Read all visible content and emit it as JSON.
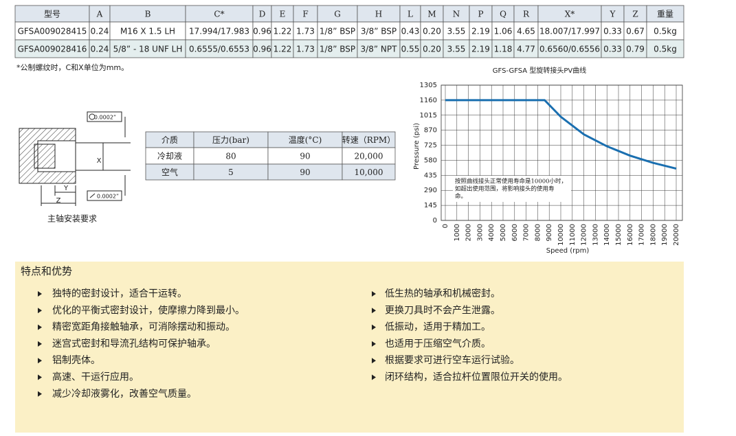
{
  "spec_table": {
    "headers": [
      "型号",
      "A",
      "B",
      "C*",
      "D",
      "E",
      "F",
      "G",
      "H",
      "L",
      "M",
      "N",
      "P",
      "Q",
      "R",
      "X*",
      "Y",
      "Z",
      "重量"
    ],
    "rows": [
      [
        "GFSA009028415",
        "0.24",
        "M16 X 1.5     LH",
        "17.994/17.983",
        "0.96",
        "1.22",
        "1.73",
        "1/8” BSP",
        "3/8” BSP",
        "0.43",
        "0.20",
        "3.55",
        "2.19",
        "1.06",
        "4.65",
        "18.007/17.997",
        "0.33",
        "0.67",
        "0.5kg"
      ],
      [
        "GFSA009028416",
        "0.24",
        "5/8” - 18 UNF LH",
        "0.6555/0.6553",
        "0.96",
        "1.22",
        "1.73",
        "1/8” BSP",
        "3/8” NPT",
        "0.55",
        "0.20",
        "3.55",
        "2.19",
        "1.18",
        "4.77",
        "0.6560/0.6556",
        "0.33",
        "0.79",
        "0.5kg"
      ]
    ]
  },
  "note": "*公制螺纹时，C和X单位为mm。",
  "diagram": {
    "tolerance_top": "0.0002”",
    "tolerance_bottom": "0.0002”",
    "x": "X",
    "y": "Y",
    "z": "Z",
    "caption": "主轴安装要求"
  },
  "media_table": {
    "headers": [
      "介质",
      "压力(bar)",
      "温度(°C)",
      "转速（RPM）"
    ],
    "rows": [
      [
        "冷却液",
        "80",
        "90",
        "20,000"
      ],
      [
        "空气",
        "5",
        "90",
        "10,000"
      ]
    ]
  },
  "chart_data": {
    "type": "line",
    "title": "GFS-GFSA 型旋转接头PV曲线",
    "x_label": "Speed (rpm)",
    "y_label": "Pressure (psi)",
    "x": [
      0,
      8600,
      10000,
      12000,
      14000,
      16000,
      18000,
      20000
    ],
    "values": [
      1160,
      1160,
      1000,
      830,
      715,
      625,
      555,
      500
    ],
    "color": "#1a6fb0",
    "xlim": [
      0,
      20000
    ],
    "ylim": [
      0,
      1305
    ],
    "xticks": [
      0,
      1000,
      2000,
      3000,
      4000,
      5000,
      6000,
      7000,
      8000,
      9000,
      10000,
      11000,
      12000,
      13000,
      14000,
      15000,
      16000,
      17000,
      18000,
      19000,
      20000
    ],
    "yticks": [
      0,
      145,
      290,
      435,
      580,
      725,
      870,
      1015,
      1160,
      1305
    ],
    "grid": true,
    "annotation": [
      "按照曲线接头正常使用寿命是10000小时，",
      "如超出使用范围，将影响接头的使用寿",
      "命。"
    ]
  },
  "features": {
    "title": "特点和优势",
    "left": [
      "独特的密封设计，适合干运转。",
      "优化的平衡式密封设计，使摩擦力降到最小。",
      "精密宽距角接触轴承，可消除摆动和振动。",
      "迷宫式密封和导流孔结构可保护轴承。",
      "铝制壳体。",
      "高速、干运行应用。",
      "减少冷却液雾化，改善空气质量。"
    ],
    "right": [
      "低生热的轴承和机械密封。",
      "更换刀具时不会产生泄露。",
      "低振动，适用于精加工。",
      "也适用于压缩空气介质。",
      "根据要求可进行空车运行试验。",
      "闭环结构，适合拉杆位置限位开关的使用。"
    ]
  }
}
